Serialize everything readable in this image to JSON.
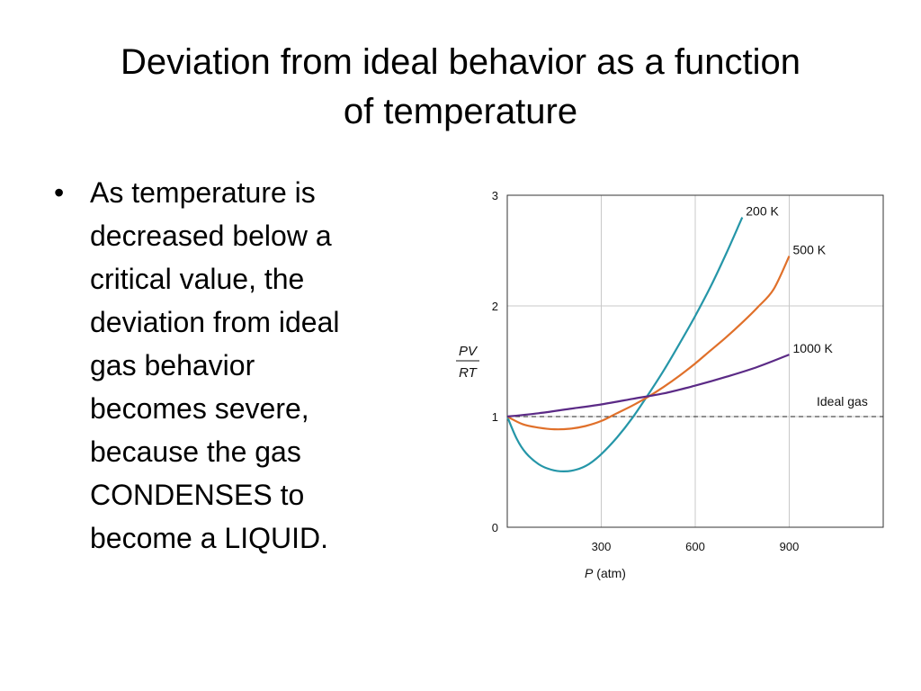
{
  "slide": {
    "title_line1": "Deviation from ideal behavior as a function",
    "title_line2": "of temperature",
    "bullet_symbol": "•",
    "bullet_lines": [
      "As temperature is",
      "decreased below a",
      "critical value, the",
      "deviation from ideal",
      "gas behavior",
      "becomes severe,",
      "because the gas",
      "CONDENSES to",
      "become a LIQUID."
    ]
  },
  "chart_data": {
    "type": "line",
    "xlabel_italic": "P",
    "xlabel_rest": " (atm)",
    "ylabel_num": "PV",
    "ylabel_den": "RT",
    "xlim": [
      0,
      1200
    ],
    "ylim": [
      0,
      3
    ],
    "xticks": [
      300,
      600,
      900
    ],
    "yticks": [
      0,
      1,
      2,
      3
    ],
    "grid_x": [
      300,
      600,
      900
    ],
    "grid_y": [
      1,
      2
    ],
    "grid": true,
    "series": [
      {
        "name": "200 K",
        "color": "#2596a8",
        "x": [
          0,
          30,
          60,
          100,
          140,
          180,
          220,
          260,
          300,
          350,
          400,
          450,
          500,
          550,
          600,
          650,
          700,
          750
        ],
        "y": [
          1.0,
          0.8,
          0.67,
          0.57,
          0.52,
          0.505,
          0.52,
          0.57,
          0.66,
          0.81,
          0.99,
          1.2,
          1.42,
          1.66,
          1.91,
          2.18,
          2.48,
          2.8
        ]
      },
      {
        "name": "500 K",
        "color": "#e0702a",
        "x": [
          0,
          50,
          100,
          150,
          200,
          250,
          300,
          350,
          400,
          450,
          500,
          550,
          600,
          650,
          700,
          750,
          800,
          850,
          900
        ],
        "y": [
          1.0,
          0.93,
          0.9,
          0.885,
          0.89,
          0.915,
          0.96,
          1.03,
          1.1,
          1.18,
          1.27,
          1.37,
          1.48,
          1.6,
          1.72,
          1.85,
          1.99,
          2.15,
          2.45
        ]
      },
      {
        "name": "1000 K",
        "color": "#5b2a86",
        "x": [
          0,
          100,
          200,
          300,
          400,
          500,
          600,
          700,
          800,
          900
        ],
        "y": [
          1.0,
          1.03,
          1.07,
          1.11,
          1.16,
          1.21,
          1.28,
          1.36,
          1.45,
          1.56
        ]
      }
    ],
    "reference_line": {
      "name": "Ideal gas",
      "y": 1,
      "style": "dashed"
    }
  }
}
